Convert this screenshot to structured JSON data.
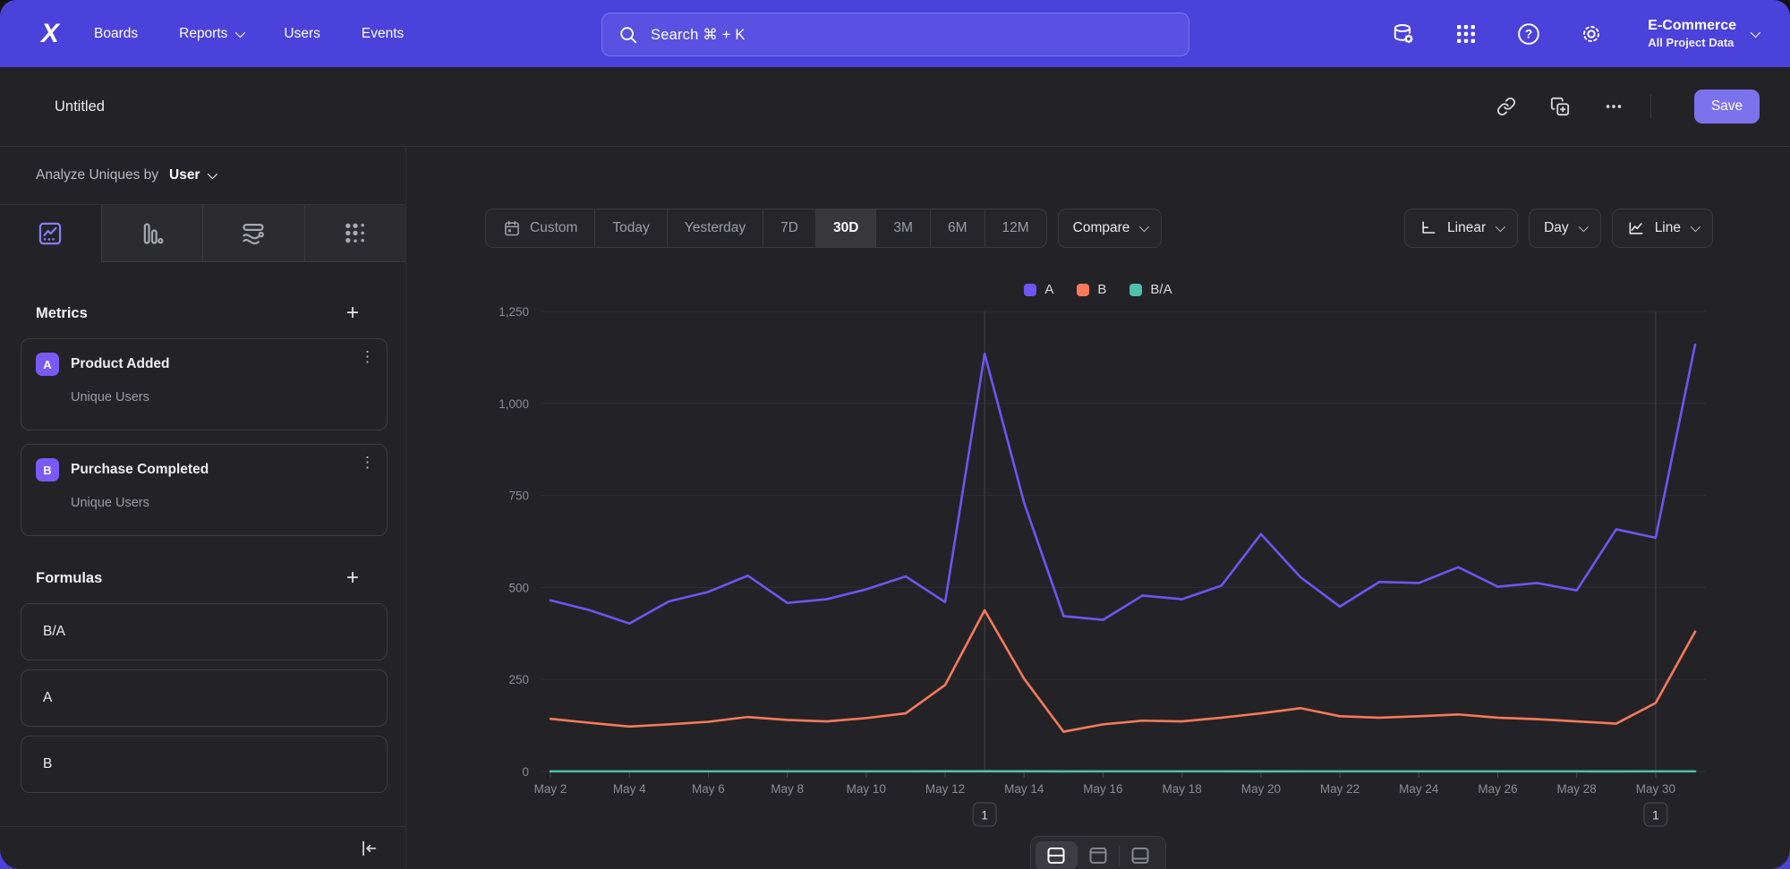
{
  "topnav": {
    "brand": "X",
    "items": [
      {
        "label": "Boards",
        "dropdown": false
      },
      {
        "label": "Reports",
        "dropdown": true
      },
      {
        "label": "Users",
        "dropdown": false
      },
      {
        "label": "Events",
        "dropdown": false
      }
    ],
    "search": {
      "placeholder": "Search  ⌘ + K"
    },
    "icons": [
      "data-management-icon",
      "apps-grid-icon",
      "help-icon",
      "settings-gear-icon"
    ],
    "project": {
      "name": "E-Commerce",
      "scope": "All Project Data"
    }
  },
  "titlebar": {
    "title": "Untitled",
    "save_label": "Save"
  },
  "sidebar": {
    "analyze": {
      "prefix": "Analyze Uniques by",
      "value": "User"
    },
    "tabs": [
      "insights-line-chart",
      "bar-chart",
      "flow",
      "retention"
    ],
    "selected_tab": "insights-line-chart",
    "metrics": {
      "title": "Metrics",
      "items": [
        {
          "badge": "A",
          "name": "Product Added",
          "subtitle": "Unique Users"
        },
        {
          "badge": "B",
          "name": "Purchase Completed",
          "subtitle": "Unique Users"
        }
      ]
    },
    "formulas": {
      "title": "Formulas",
      "items": [
        "B/A",
        "A",
        "B"
      ]
    }
  },
  "controls": {
    "ranges": [
      "Custom",
      "Today",
      "Yesterday",
      "7D",
      "30D",
      "3M",
      "6M",
      "12M"
    ],
    "selected_range": "30D",
    "compare": "Compare",
    "scale": "Linear",
    "granularity": "Day",
    "chart_type": "Line"
  },
  "legend": [
    {
      "label": "A",
      "color": "#6f55f3"
    },
    {
      "label": "B",
      "color": "#f87a5a"
    },
    {
      "label": "B/A",
      "color": "#4fc0ac",
      "dotted": true
    }
  ],
  "chart_data": {
    "type": "line",
    "title": "",
    "xlabel": "",
    "ylabel": "",
    "ylim": [
      0,
      1250
    ],
    "yticks": [
      0,
      250,
      500,
      750,
      1000,
      1250
    ],
    "grid": true,
    "legend_position": "top-center",
    "x": [
      "May 2",
      "May 3",
      "May 4",
      "May 5",
      "May 6",
      "May 7",
      "May 8",
      "May 9",
      "May 10",
      "May 11",
      "May 12",
      "May 13",
      "May 14",
      "May 15",
      "May 16",
      "May 17",
      "May 18",
      "May 19",
      "May 20",
      "May 21",
      "May 22",
      "May 23",
      "May 24",
      "May 25",
      "May 26",
      "May 27",
      "May 28",
      "May 29",
      "May 30",
      "May 31"
    ],
    "xtick_every": 2,
    "series": [
      {
        "name": "A",
        "color": "#6f55f3",
        "values": [
          465,
          438,
          402,
          462,
          488,
          532,
          458,
          468,
          495,
          530,
          460,
          1135,
          730,
          422,
          412,
          478,
          468,
          505,
          645,
          528,
          448,
          515,
          512,
          555,
          502,
          512,
          492,
          658,
          635,
          1160
        ]
      },
      {
        "name": "B",
        "color": "#f87a5a",
        "values": [
          143,
          132,
          122,
          128,
          135,
          148,
          140,
          136,
          145,
          158,
          235,
          438,
          252,
          108,
          128,
          138,
          136,
          146,
          158,
          172,
          150,
          146,
          150,
          155,
          146,
          142,
          136,
          130,
          186,
          380
        ]
      },
      {
        "name": "B/A",
        "color": "#4fc0ac",
        "values": [
          0.31,
          0.3,
          0.3,
          0.28,
          0.28,
          0.28,
          0.31,
          0.29,
          0.29,
          0.3,
          0.51,
          0.39,
          0.35,
          0.26,
          0.31,
          0.29,
          0.29,
          0.29,
          0.25,
          0.33,
          0.33,
          0.28,
          0.29,
          0.28,
          0.29,
          0.28,
          0.28,
          0.2,
          0.29,
          0.33
        ]
      }
    ],
    "annotations": [
      {
        "x": "May 13",
        "label": "1"
      },
      {
        "x": "May 30",
        "label": "1"
      }
    ]
  },
  "bottom_toggles": {
    "options": [
      "chart-and-table-split",
      "table-on-top",
      "table-on-bottom"
    ],
    "selected": "chart-and-table-split"
  }
}
